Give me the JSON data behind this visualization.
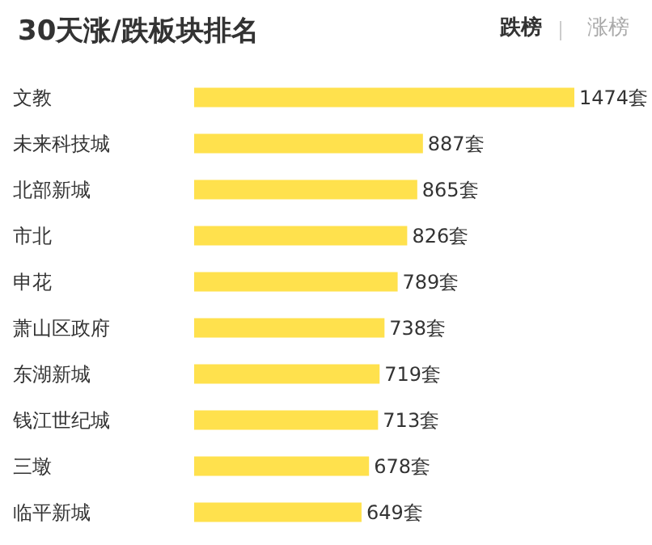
{
  "chart_data": {
    "type": "bar",
    "orientation": "horizontal",
    "title": "30天涨/跌板块排名",
    "annotations": [
      "跌榜",
      "涨榜"
    ],
    "categories": [
      "文教",
      "未来科技城",
      "北部新城",
      "市北",
      "申花",
      "萧山区政府",
      "东湖新城",
      "钱江世纪城",
      "三墩",
      "临平新城"
    ],
    "values": [
      1474,
      887,
      865,
      826,
      789,
      738,
      719,
      713,
      678,
      649
    ],
    "value_labels": [
      "1474套",
      "887套",
      "865套",
      "826套",
      "789套",
      "738套",
      "719套",
      "713套",
      "678套",
      "649套"
    ],
    "color": "#ffe14d",
    "grid": false
  }
}
